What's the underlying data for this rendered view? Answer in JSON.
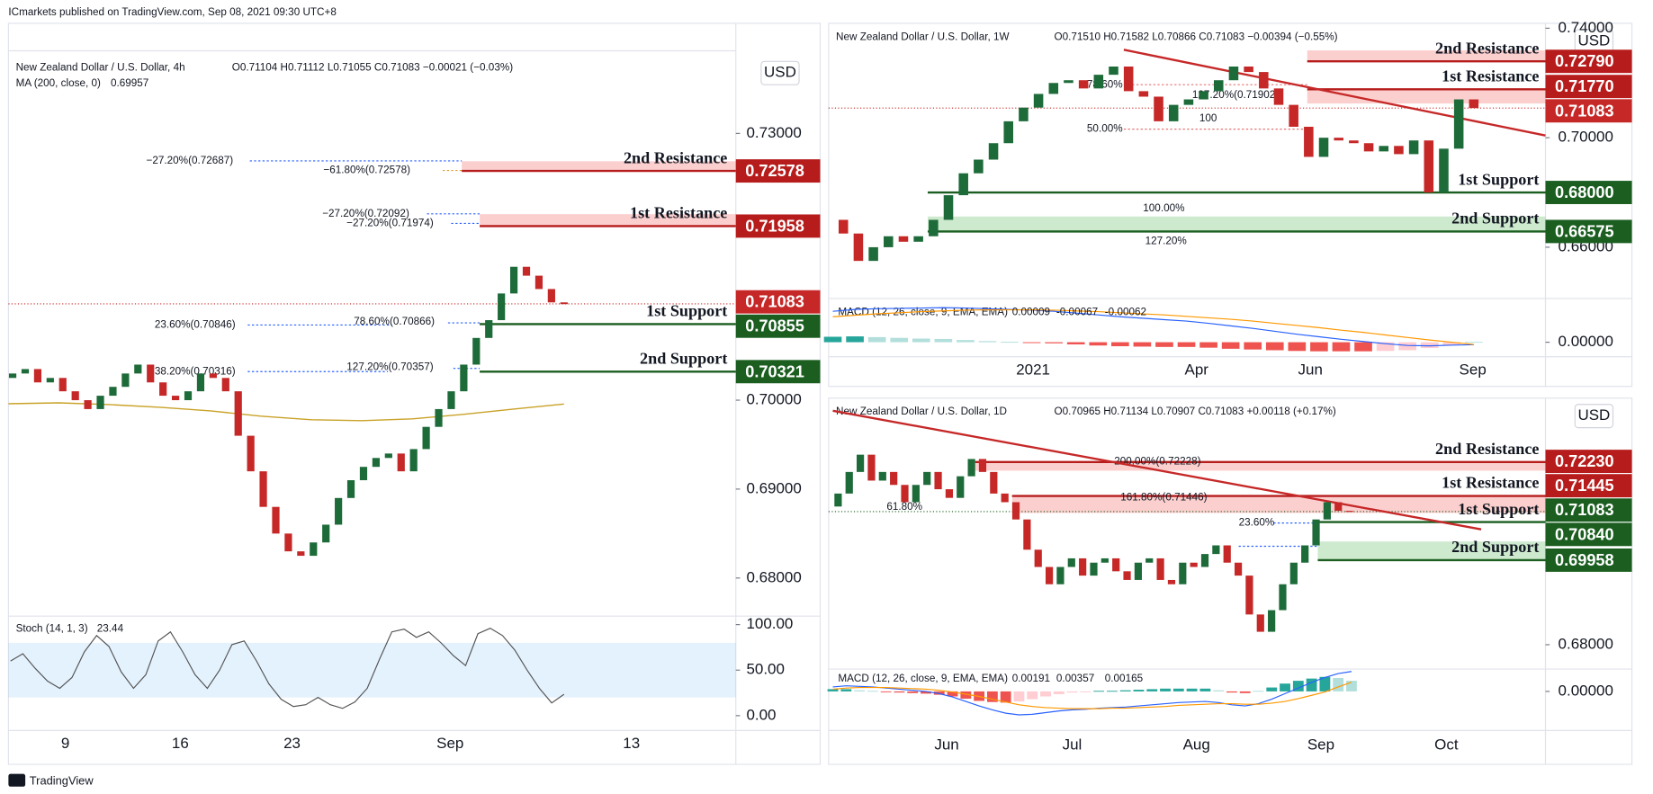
{
  "header": "ICmarkets published on TradingView.com, Sep 08, 2021 09:30 UTC+8",
  "footer": "TradingView",
  "panels": [
    {
      "symbol": "New Zealand Dollar / U.S. Dollar, 4h",
      "ohlc": "O0.71104 H0.71112 L0.71055 C0.71083 −0.00021 (−0.03%)",
      "currency": "USD",
      "ylim": [
        0.67595,
        0.73929
      ],
      "yticks": [
        {
          "value": 0.73,
          "label": "0.73000"
        },
        {
          "value": 0.7,
          "label": "0.70000"
        },
        {
          "value": 0.69,
          "label": "0.69000"
        },
        {
          "value": 0.68,
          "label": "0.68000"
        }
      ],
      "xticks": [
        "9",
        "16",
        "23",
        "Sep",
        "13"
      ],
      "candles": {
        "first_open": 0.7025,
        "up_color": "#1e6b3a",
        "down_color": "#c62828",
        "closes": [
          0.703,
          0.7035,
          0.702,
          0.7025,
          0.701,
          0.7,
          0.699,
          0.7005,
          0.7015,
          0.703,
          0.704,
          0.702,
          0.7005,
          0.7,
          0.701,
          0.703,
          0.7025,
          0.701,
          0.696,
          0.692,
          0.688,
          0.685,
          0.683,
          0.6825,
          0.684,
          0.686,
          0.689,
          0.691,
          0.6925,
          0.6935,
          0.694,
          0.692,
          0.6945,
          0.697,
          0.699,
          0.701,
          0.704,
          0.707,
          0.709,
          0.712,
          0.715,
          0.714,
          0.7125,
          0.711,
          0.7108
        ]
      },
      "overlay": {
        "name": "MA (200, close, 0)",
        "color": "#c9a227",
        "values": [
          0.6996,
          0.6997,
          0.6995,
          0.6992,
          0.6988,
          0.6982,
          0.6978,
          0.6977,
          0.6979,
          0.6984,
          0.699,
          0.69957
        ]
      },
      "levels": [
        {
          "name": "2nd Resistance",
          "kind": "resistance",
          "color": "#b71c1c",
          "price": 0.72578,
          "price_label": "0.72578",
          "band": 0.72687
        },
        {
          "name": "1st Resistance",
          "kind": "resistance",
          "color": "#b71c1c",
          "price": 0.71958,
          "price_label": "0.71958",
          "band": 0.72092
        },
        {
          "kind": "current",
          "color": "#c62828",
          "price": 0.71083,
          "price_label": "0.71083"
        },
        {
          "name": "1st Support",
          "kind": "support",
          "color": "#1b5e20",
          "price": 0.70855,
          "price_label": "0.70855"
        },
        {
          "name": "2nd Support",
          "kind": "support",
          "color": "#1b5e20",
          "price": 0.70321,
          "price_label": "0.70321"
        }
      ],
      "fib_labels": [
        "−27.20%(0.72687)",
        "−61.80%(0.72578)",
        "−27.20%(0.72092)",
        "−27.20%(0.71974)",
        "23.60%(0.70846)",
        "78.60%(0.70866)",
        "38.20%(0.70316)",
        "127.20%(0.70357)"
      ],
      "indicator": {
        "type": "stoch",
        "name": "Stoch (14, 1, 3)",
        "ylim": [
          -16.3,
          109.3
        ],
        "yticks": [
          {
            "value": 100,
            "label": "100.00"
          },
          {
            "value": 50,
            "label": "50.00"
          },
          {
            "value": 0,
            "label": "0.00"
          }
        ],
        "band": [
          20,
          80
        ],
        "color": "#555555",
        "values": [
          60,
          68,
          52,
          38,
          30,
          42,
          70,
          88,
          76,
          48,
          30,
          45,
          82,
          92,
          70,
          45,
          30,
          50,
          78,
          82,
          60,
          35,
          18,
          10,
          12,
          20,
          12,
          8,
          15,
          30,
          62,
          92,
          95,
          86,
          92,
          80,
          66,
          55,
          90,
          96,
          88,
          72,
          50,
          30,
          14,
          23.44
        ]
      }
    },
    {
      "symbol": "New Zealand Dollar / U.S. Dollar, 1W",
      "ohlc": "O0.71510 H0.71582 L0.70866 C0.71083 −0.00394 (−0.55%)",
      "currency": "USD",
      "ylim": [
        0.64202,
        0.7418
      ],
      "yticks": [
        {
          "value": 0.74,
          "label": "0.74000"
        },
        {
          "value": 0.7,
          "label": "0.70000"
        },
        {
          "value": 0.66,
          "label": "0.66000"
        }
      ],
      "xticks": [
        "2021",
        "Apr",
        "Jun",
        "Sep"
      ],
      "candles": {
        "first_open": 0.67,
        "up_color": "#1e6b3a",
        "down_color": "#c62828",
        "closes": [
          0.665,
          0.655,
          0.66,
          0.664,
          0.662,
          0.664,
          0.67,
          0.679,
          0.687,
          0.692,
          0.698,
          0.706,
          0.711,
          0.716,
          0.72,
          0.721,
          0.718,
          0.723,
          0.726,
          0.717,
          0.715,
          0.706,
          0.712,
          0.714,
          0.717,
          0.721,
          0.726,
          0.724,
          0.718,
          0.712,
          0.704,
          0.693,
          0.7,
          0.699,
          0.698,
          0.695,
          0.697,
          0.694,
          0.699,
          0.68,
          0.696,
          0.714,
          0.71083
        ]
      },
      "levels": [
        {
          "name": "2nd Resistance",
          "kind": "resistance",
          "color": "#b71c1c",
          "price": 0.7279,
          "price_label": "0.72790",
          "band": 0.7319
        },
        {
          "name": "1st Resistance",
          "kind": "resistance",
          "color": "#b71c1c",
          "price": 0.7177,
          "price_label": "0.71770",
          "band": 0.7125
        },
        {
          "kind": "current",
          "color": "#c62828",
          "price": 0.71083,
          "price_label": "0.71083"
        },
        {
          "name": "1st Support",
          "kind": "support",
          "color": "#1b5e20",
          "price": 0.68,
          "price_label": "0.68000"
        },
        {
          "name": "2nd Support",
          "kind": "support",
          "color": "#1b5e20",
          "price": 0.66575,
          "price_label": "0.66575",
          "band": 0.6712
        }
      ],
      "fib_labels": [
        "78.60%",
        "127.20%(0.71902)",
        "100",
        "50.00%",
        "100.00%",
        "127.20%"
      ],
      "indicator": {
        "type": "macd",
        "name": "MACD (12, 26, close, 9, EMA, EMA)",
        "ylim": [
          -0.004,
          0.012
        ],
        "yticks": [
          {
            "value": 0,
            "label": "0.00000"
          }
        ],
        "macd_color": "#2962ff",
        "signal_color": "#ff9800",
        "hist": [
          0.0015,
          0.0016,
          0.0014,
          0.0012,
          0.001,
          0.0009,
          0.0006,
          0.0003,
          0.0001,
          -0.0001,
          -0.0003,
          -0.0006,
          -0.0009,
          -0.0011,
          -0.0012,
          -0.0013,
          -0.0013,
          -0.0015,
          -0.0018,
          -0.002,
          -0.0022,
          -0.0024,
          -0.0025,
          -0.0025,
          -0.0025,
          -0.0024,
          -0.0022,
          -0.0016,
          -0.0008,
          9e-05
        ],
        "macd": [
          0.0085,
          0.009,
          0.0092,
          0.0093,
          0.0094,
          0.0095,
          0.0094,
          0.0092,
          0.009,
          0.0088,
          0.0085,
          0.008,
          0.0075,
          0.007,
          0.0066,
          0.0062,
          0.0058,
          0.0052,
          0.0045,
          0.0038,
          0.003,
          0.0022,
          0.0015,
          0.0008,
          0.0002,
          -0.0004,
          -0.0009,
          -0.001,
          -0.0008,
          -0.00067
        ],
        "signal": [
          0.007,
          0.0074,
          0.0078,
          0.0081,
          0.0084,
          0.0086,
          0.0088,
          0.0089,
          0.0089,
          0.0089,
          0.0088,
          0.0086,
          0.0084,
          0.0081,
          0.0078,
          0.0075,
          0.0071,
          0.0067,
          0.0063,
          0.0058,
          0.0052,
          0.0046,
          0.004,
          0.0033,
          0.0027,
          0.002,
          0.0013,
          0.0006,
          0.0,
          -0.00062
        ]
      }
    },
    {
      "symbol": "New Zealand Dollar / U.S. Dollar, 1D",
      "ohlc": "O0.70965 H0.71134 L0.70907 C0.71083 +0.00118 (+0.17%)",
      "currency": "USD",
      "ylim": [
        0.67485,
        0.73711
      ],
      "yticks": [
        {
          "value": 0.68,
          "label": "0.68000"
        }
      ],
      "xticks": [
        "Jun",
        "Jul",
        "Aug",
        "Sep",
        "Oct"
      ],
      "candles": {
        "first_open": 0.712,
        "up_color": "#1e6b3a",
        "down_color": "#c62828",
        "closes": [
          0.715,
          0.72,
          0.724,
          0.718,
          0.72,
          0.717,
          0.713,
          0.717,
          0.72,
          0.716,
          0.714,
          0.719,
          0.723,
          0.72,
          0.715,
          0.713,
          0.709,
          0.702,
          0.698,
          0.694,
          0.698,
          0.7,
          0.696,
          0.699,
          0.7,
          0.697,
          0.695,
          0.699,
          0.7,
          0.695,
          0.694,
          0.699,
          0.698,
          0.701,
          0.703,
          0.699,
          0.696,
          0.687,
          0.683,
          0.688,
          0.694,
          0.699,
          0.703,
          0.709,
          0.713,
          0.711,
          0.71083
        ]
      },
      "levels": [
        {
          "name": "2nd Resistance",
          "kind": "resistance",
          "color": "#b71c1c",
          "price": 0.7223,
          "price_label": "0.72230",
          "band": 0.7203
        },
        {
          "name": "1st Resistance",
          "kind": "resistance",
          "color": "#b71c1c",
          "price": 0.71445,
          "price_label": "0.71445",
          "band": 0.7105
        },
        {
          "kind": "current",
          "color": "#1b5e20",
          "price": 0.71083,
          "price_label": "0.71083"
        },
        {
          "name": "1st Support",
          "kind": "support",
          "color": "#1b5e20",
          "price": 0.7084,
          "price_label": "0.70840"
        },
        {
          "name": "2nd Support",
          "kind": "support",
          "color": "#1b5e20",
          "price": 0.69958,
          "price_label": "0.69958",
          "band": 0.7039
        }
      ],
      "fib_labels": [
        "61.80%",
        "200.00%(0.72228)",
        "161.80%(0.71446)",
        "23.60%"
      ],
      "indicator": {
        "type": "macd",
        "name": "MACD (12, 26, close, 9, EMA, EMA)",
        "ylim": [
          -0.007,
          0.004
        ],
        "yticks": [
          {
            "value": 0,
            "label": "0.00000"
          }
        ],
        "macd_color": "#2962ff",
        "signal_color": "#ff9800",
        "hist": [
          0.0004,
          0.0004,
          0.0002,
          0.0001,
          -0.0001,
          -0.0002,
          -0.0003,
          -0.0004,
          -0.0006,
          -0.0009,
          -0.0013,
          -0.0017,
          -0.0019,
          -0.002,
          -0.0018,
          -0.0014,
          -0.0009,
          -0.0005,
          -0.0002,
          -0.0001,
          0.0001,
          0.0001,
          0.0002,
          0.0003,
          0.0004,
          0.0005,
          0.0005,
          0.0005,
          0.0005,
          0.0002,
          -0.0002,
          -0.0003,
          0.0001,
          0.0007,
          0.0014,
          0.0019,
          0.0023,
          0.0026,
          0.0024,
          0.00191
        ],
        "macd": [
          0.0008,
          0.001,
          0.0009,
          0.0008,
          0.0006,
          0.0004,
          0.0002,
          0.0,
          -0.0004,
          -0.001,
          -0.0018,
          -0.0026,
          -0.0033,
          -0.0039,
          -0.0042,
          -0.0041,
          -0.0038,
          -0.0035,
          -0.0033,
          -0.0032,
          -0.003,
          -0.0029,
          -0.0028,
          -0.0026,
          -0.0024,
          -0.0022,
          -0.002,
          -0.0019,
          -0.0018,
          -0.002,
          -0.0024,
          -0.0026,
          -0.0022,
          -0.0014,
          -0.0004,
          0.0006,
          0.0016,
          0.0025,
          0.0032,
          0.00357
        ],
        "signal": [
          0.0004,
          0.0006,
          0.0007,
          0.0007,
          0.0007,
          0.0006,
          0.0005,
          0.0004,
          0.0002,
          -0.0001,
          -0.0005,
          -0.0009,
          -0.0014,
          -0.0019,
          -0.0024,
          -0.0027,
          -0.0029,
          -0.003,
          -0.0031,
          -0.0031,
          -0.0031,
          -0.003,
          -0.003,
          -0.0029,
          -0.0028,
          -0.0027,
          -0.0025,
          -0.0024,
          -0.0023,
          -0.0022,
          -0.0022,
          -0.0023,
          -0.0023,
          -0.0021,
          -0.0018,
          -0.0013,
          -0.0007,
          -0.0001,
          0.0008,
          0.00165
        ]
      }
    }
  ]
}
